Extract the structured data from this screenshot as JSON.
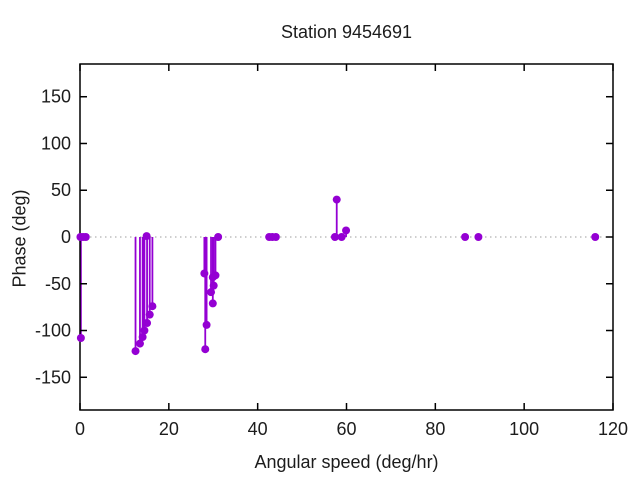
{
  "title": "Station 9454691",
  "chart_data": {
    "type": "scatter",
    "style": "impulses+points",
    "title": "Station 9454691",
    "xlabel": "Angular speed (deg/hr)",
    "ylabel": "Phase (deg)",
    "xlim": [
      0,
      120
    ],
    "ylim": [
      -185,
      185
    ],
    "xticks": [
      0,
      20,
      40,
      60,
      80,
      100,
      120
    ],
    "yticks": [
      -150,
      -100,
      -50,
      0,
      50,
      100,
      150
    ],
    "grid": false,
    "legend": "none",
    "zero_line": true,
    "marker_color": "#9400d3",
    "zero_line_color": "#9e9e9e",
    "border_color": "#000000",
    "text_color": "#1c1c1c",
    "points": [
      [
        0.1,
        0
      ],
      [
        0.7,
        0
      ],
      [
        1.3,
        0
      ],
      [
        0.2,
        -108
      ],
      [
        12.5,
        -122
      ],
      [
        13.5,
        -114
      ],
      [
        14.1,
        -107
      ],
      [
        14.5,
        -100
      ],
      [
        15.1,
        -92
      ],
      [
        15.7,
        -83
      ],
      [
        16.3,
        -74
      ],
      [
        15.0,
        1
      ],
      [
        28.0,
        -39
      ],
      [
        28.2,
        -120
      ],
      [
        28.5,
        -94
      ],
      [
        29.5,
        -59
      ],
      [
        29.9,
        -71
      ],
      [
        29.9,
        -43
      ],
      [
        30.5,
        -41
      ],
      [
        30.1,
        -52
      ],
      [
        31.1,
        0
      ],
      [
        42.6,
        0
      ],
      [
        43.3,
        0
      ],
      [
        44.1,
        0
      ],
      [
        57.4,
        0
      ],
      [
        57.8,
        40
      ],
      [
        58.9,
        0
      ],
      [
        59.9,
        7
      ],
      [
        86.7,
        0
      ],
      [
        89.7,
        0
      ],
      [
        116.0,
        0
      ]
    ]
  }
}
